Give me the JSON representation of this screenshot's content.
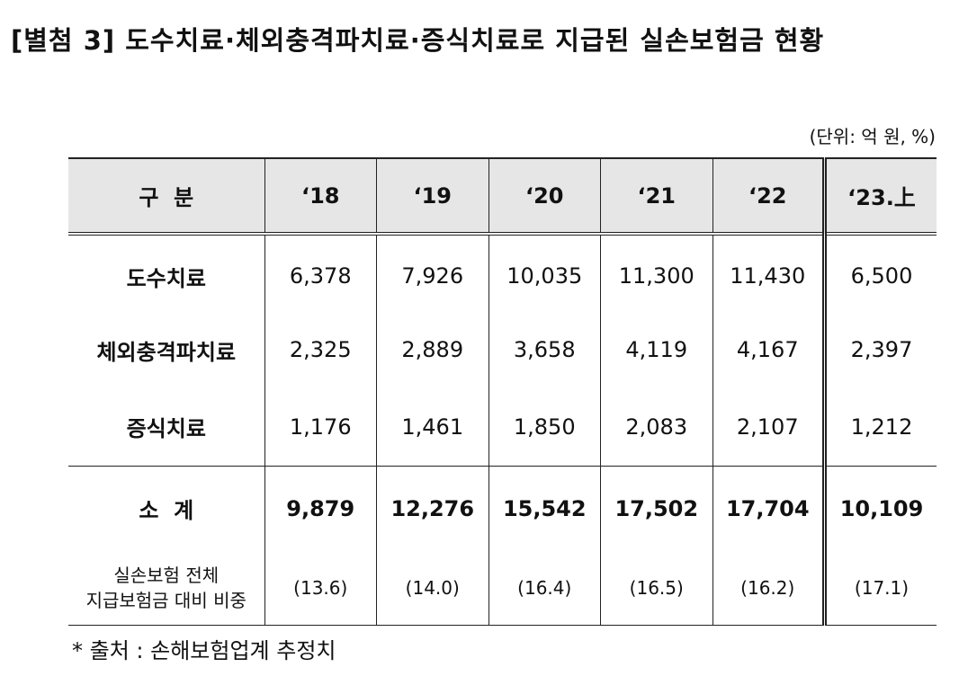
{
  "title": "[별첨 3] 도수치료·체외충격파치료·증식치료로 지급된 실손보험금 현황",
  "unit": "(단위: 억 원, %)",
  "table": {
    "header": {
      "label": "구  분",
      "years": [
        "‘18",
        "‘19",
        "‘20",
        "‘21",
        "‘22",
        "‘23.上"
      ]
    },
    "rows": [
      {
        "label": "도수치료",
        "values": [
          "6,378",
          "7,926",
          "10,035",
          "11,300",
          "11,430",
          "6,500"
        ]
      },
      {
        "label": "체외충격파치료",
        "values": [
          "2,325",
          "2,889",
          "3,658",
          "4,119",
          "4,167",
          "2,397"
        ]
      },
      {
        "label": "증식치료",
        "values": [
          "1,176",
          "1,461",
          "1,850",
          "2,083",
          "2,107",
          "1,212"
        ]
      }
    ],
    "total": {
      "label": "소  계",
      "values": [
        "9,879",
        "12,276",
        "15,542",
        "17,502",
        "17,704",
        "10,109"
      ]
    },
    "share": {
      "label_line1": "실손보험 전체",
      "label_line2": "지급보험금 대비 비중",
      "values": [
        "(13.6)",
        "(14.0)",
        "(16.4)",
        "(16.5)",
        "(16.2)",
        "(17.1)"
      ]
    }
  },
  "footnote": "* 출처 : 손해보험업계 추정치"
}
